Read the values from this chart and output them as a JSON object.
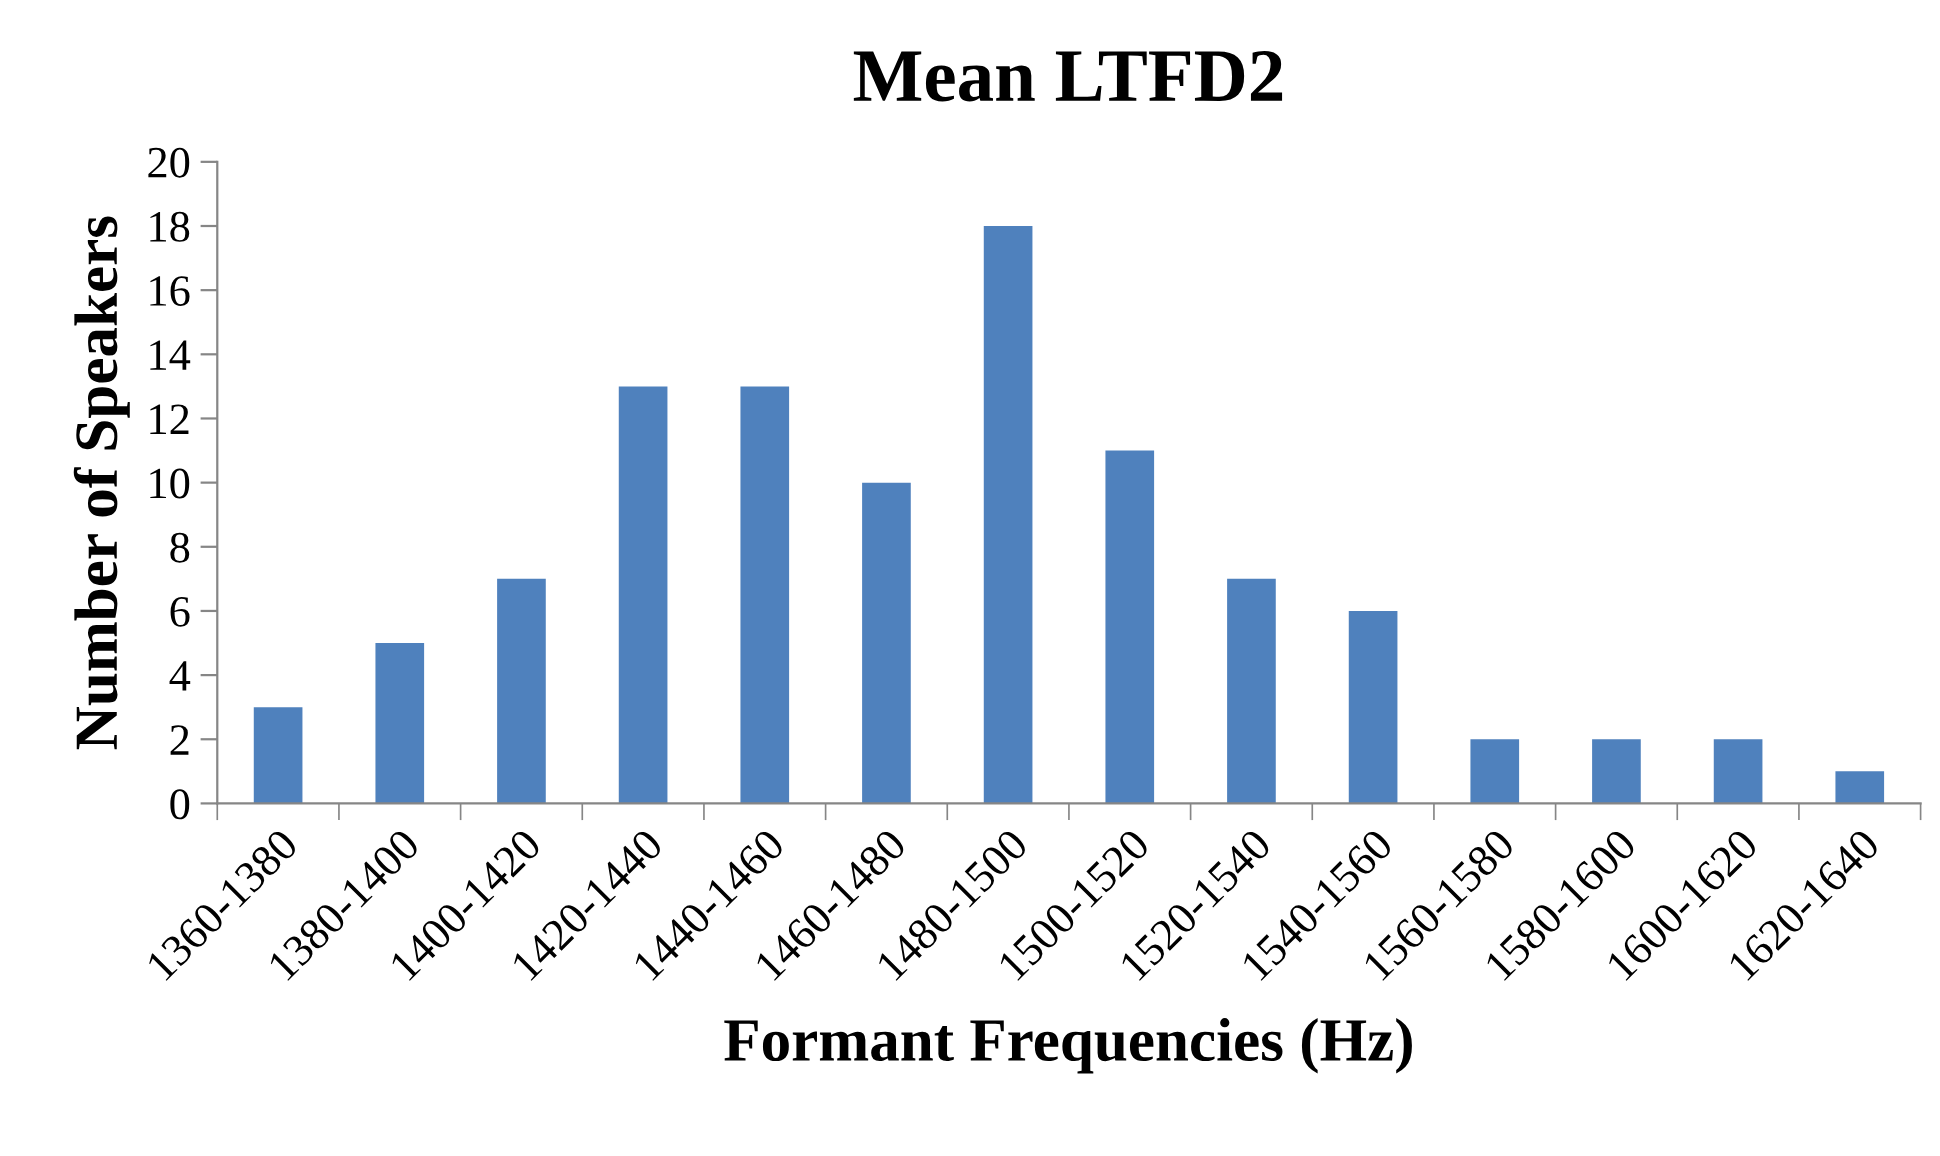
{
  "chart_data": {
    "type": "bar",
    "title": "Mean LTFD2",
    "xlabel": "Formant Frequencies (Hz)",
    "ylabel": "Number of Speakers",
    "categories": [
      "1360-1380",
      "1380-1400",
      "1400-1420",
      "1420-1440",
      "1440-1460",
      "1460-1480",
      "1480-1500",
      "1500-1520",
      "1520-1540",
      "1540-1560",
      "1560-1580",
      "1580-1600",
      "1600-1620",
      "1620-1640"
    ],
    "values": [
      3,
      5,
      7,
      13,
      13,
      10,
      18,
      11,
      7,
      6,
      2,
      2,
      2,
      1
    ],
    "color": "#4f81bd",
    "ylim": [
      0,
      20
    ],
    "yticks": [
      0,
      2,
      4,
      6,
      8,
      10,
      12,
      14,
      16,
      18,
      20
    ]
  }
}
